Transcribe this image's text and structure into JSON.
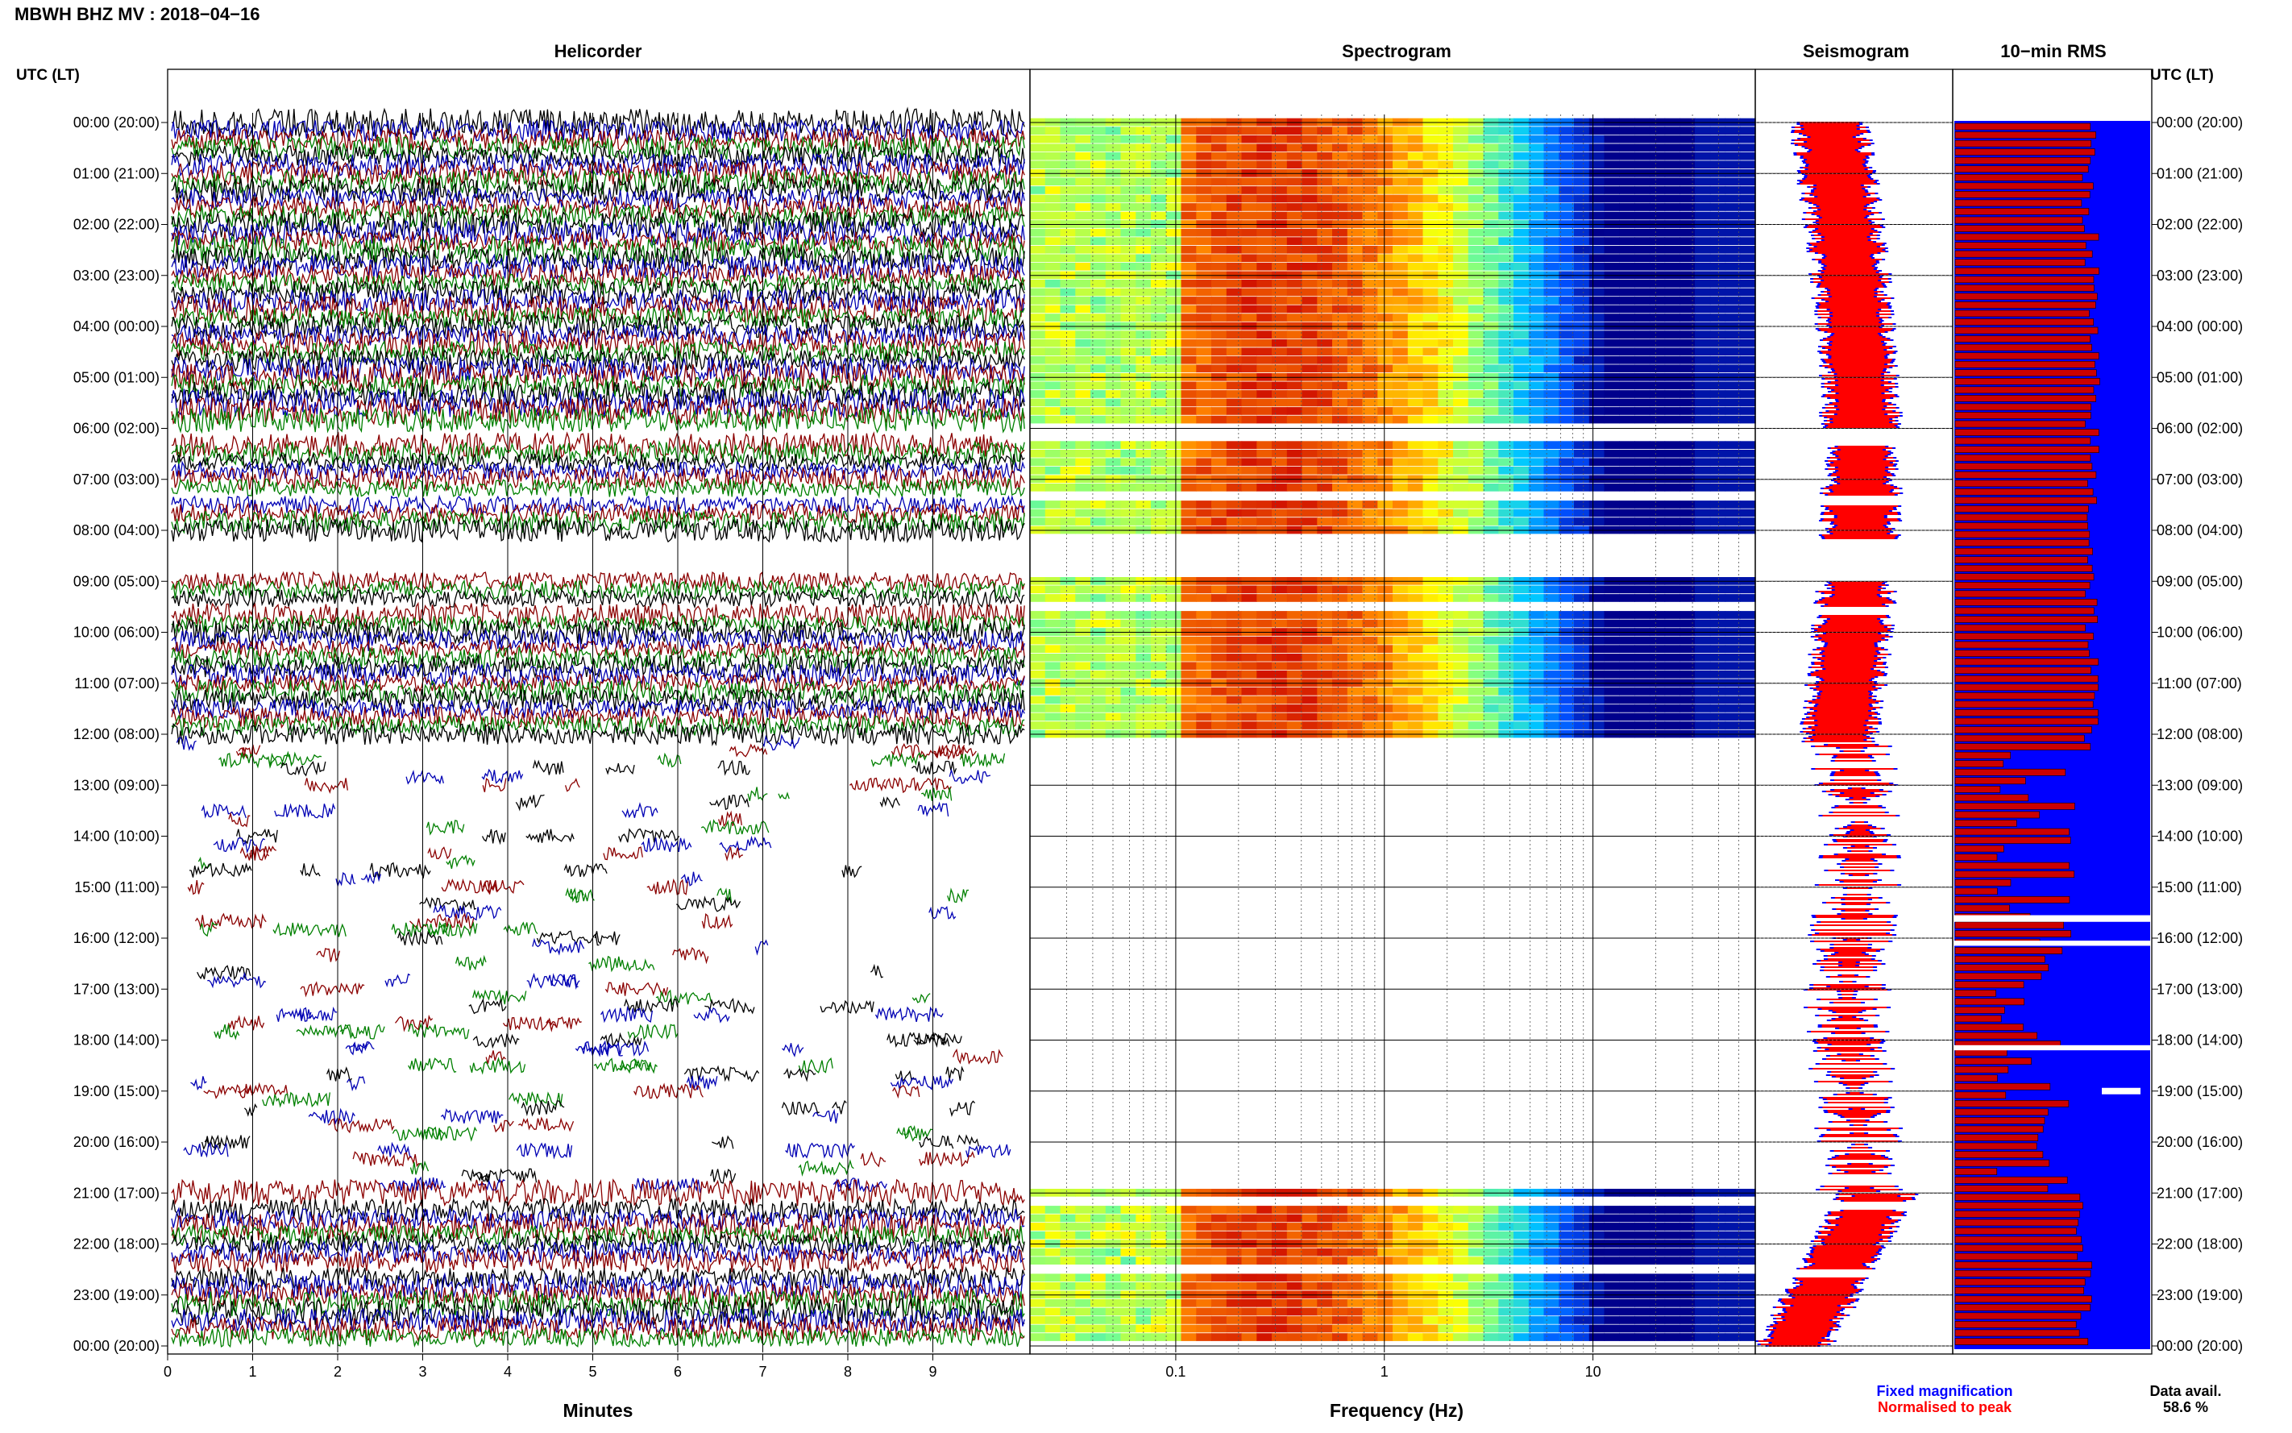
{
  "page": {
    "station_title": "MBWH BHZ MV : 2018−04−16",
    "utc_lt_left": "UTC (LT)",
    "utc_lt_right": "UTC (LT)"
  },
  "panels": {
    "helicorder": "Helicorder",
    "spectrogram": "Spectrogram",
    "seismogram": "Seismogram",
    "rms": "10−min RMS"
  },
  "time_labels": [
    "00:00 (20:00)",
    "01:00 (21:00)",
    "02:00 (22:00)",
    "03:00 (23:00)",
    "04:00 (00:00)",
    "05:00 (01:00)",
    "06:00 (02:00)",
    "07:00 (03:00)",
    "08:00 (04:00)",
    "09:00 (05:00)",
    "10:00 (06:00)",
    "11:00 (07:00)",
    "12:00 (08:00)",
    "13:00 (09:00)",
    "14:00 (10:00)",
    "15:00 (11:00)",
    "16:00 (12:00)",
    "17:00 (13:00)",
    "18:00 (14:00)",
    "19:00 (15:00)",
    "20:00 (16:00)",
    "21:00 (17:00)",
    "22:00 (18:00)",
    "23:00 (19:00)",
    "00:00 (20:00)"
  ],
  "helicorder_axis": {
    "ticks": [
      "0",
      "1",
      "2",
      "3",
      "4",
      "5",
      "6",
      "7",
      "8",
      "9"
    ],
    "label": "Minutes"
  },
  "spectrogram_axis": {
    "ticks": [
      "0.1",
      "1",
      "10"
    ],
    "label": "Frequency (Hz)"
  },
  "legend": {
    "fixed": "Fixed magnification",
    "normalised": "Normalised to peak",
    "fixed_color": "#0000ff",
    "normalised_color": "#ff0000"
  },
  "data_availability": {
    "label": "Data avail.",
    "value": "58.6 %"
  },
  "colors": {
    "trace": [
      "#000000",
      "#0000b4",
      "#8b0000",
      "#008000"
    ],
    "rms_fill": "#0000ff",
    "rms_bar": "#cc0000",
    "seismo_fixed": "#0000ff",
    "seismo_norm": "#ff0000"
  },
  "data_gaps_utc": [
    {
      "from": "06:00",
      "to": "06:20"
    },
    {
      "from": "07:20",
      "to": "07:30"
    },
    {
      "from": "08:10",
      "to": "09:00"
    },
    {
      "from": "09:30",
      "to": "09:40"
    },
    {
      "from": "12:10",
      "to": "21:00"
    },
    {
      "from": "21:10",
      "to": "21:20"
    },
    {
      "from": "22:30",
      "to": "22:40"
    }
  ]
}
